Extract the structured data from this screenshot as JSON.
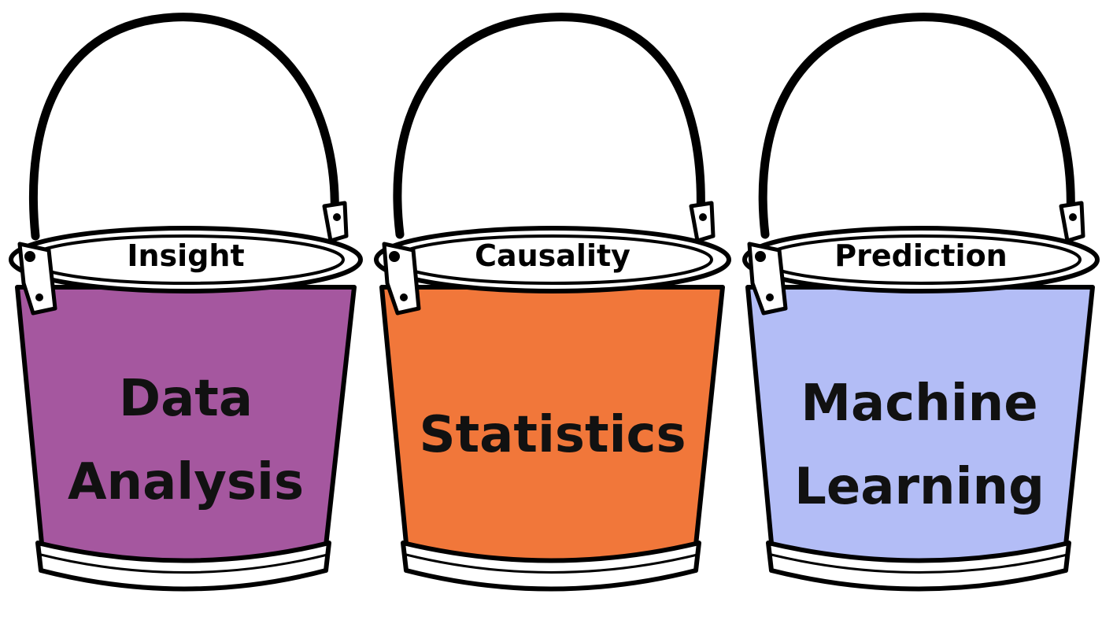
{
  "buckets": [
    {
      "rim_label": "Insight",
      "body_lines": [
        "Data",
        "Analysis"
      ],
      "color": "#a5579f"
    },
    {
      "rim_label": "Causality",
      "body_lines": [
        "Statistics"
      ],
      "color": "#f1773a"
    },
    {
      "rim_label": "Prediction",
      "body_lines": [
        "Machine",
        "Learning"
      ],
      "color": "#b3bdf6"
    }
  ]
}
